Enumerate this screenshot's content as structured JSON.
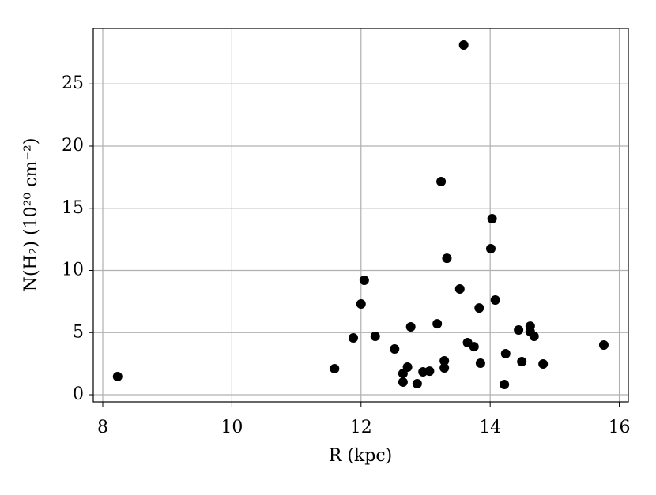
{
  "chart_data": {
    "type": "scatter",
    "x_label": "R (kpc)",
    "y_label": "N(H₂) (10²⁰ cm⁻²)",
    "color": "#000000",
    "grid": true,
    "xlim": [
      7.853,
      16.14
    ],
    "ylim": [
      -0.57,
      29.46
    ],
    "xticks": [
      8,
      10,
      12,
      14,
      16
    ],
    "yticks": [
      0,
      5,
      10,
      15,
      20,
      25
    ],
    "x": [
      8.23,
      11.59,
      11.88,
      12.0,
      12.05,
      12.22,
      12.52,
      12.65,
      12.65,
      12.72,
      12.77,
      12.87,
      12.96,
      13.06,
      13.18,
      13.24,
      13.29,
      13.29,
      13.33,
      13.53,
      13.59,
      13.65,
      13.75,
      13.83,
      13.85,
      14.01,
      14.03,
      14.08,
      14.22,
      14.24,
      14.44,
      14.49,
      14.62,
      14.62,
      14.68,
      14.82,
      15.76
    ],
    "values": [
      1.46,
      2.1,
      4.57,
      7.3,
      9.21,
      4.7,
      3.68,
      1.71,
      1.02,
      2.22,
      5.46,
      0.89,
      1.84,
      1.9,
      5.71,
      17.14,
      2.73,
      2.16,
      10.98,
      8.51,
      28.13,
      4.19,
      3.87,
      6.98,
      2.54,
      11.75,
      14.16,
      7.62,
      0.83,
      3.3,
      5.21,
      2.67,
      5.52,
      5.08,
      4.7,
      2.48,
      4.0
    ]
  }
}
